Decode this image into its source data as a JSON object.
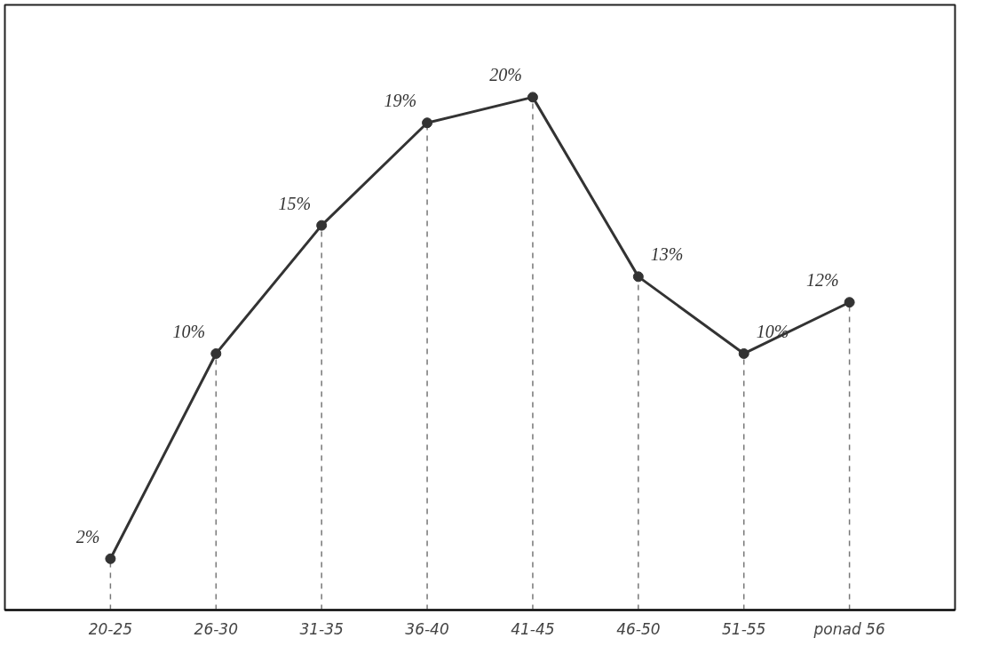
{
  "chart_data": {
    "type": "line",
    "categories": [
      "20-25",
      "26-30",
      "31-35",
      "36-40",
      "41-45",
      "46-50",
      "51-55",
      "ponad 56"
    ],
    "series": [
      {
        "color": "#333333",
        "values": [
          2,
          10,
          15,
          19,
          20,
          13,
          10,
          12
        ],
        "value_labels": [
          "2%",
          "10%",
          "15%",
          "19%",
          "20%",
          "13%",
          "10%",
          "12%"
        ]
      }
    ],
    "marker": "circle",
    "line_style": "solid",
    "grid": "x"
  }
}
